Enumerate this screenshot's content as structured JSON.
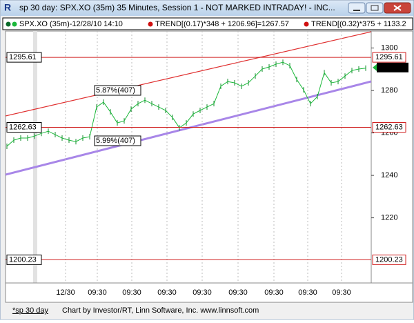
{
  "window": {
    "title": "sp 30 day: SPX.XO (35m) 35 Minutes, Session 1 - NOT MARKED INTRADAY! - INC...",
    "status_left": "*sp 30 day",
    "status_right": "Chart by Investor/RT, Linn Software, Inc. www.linnsoft.com"
  },
  "legend": [
    "SPX.XO (35m)-12/28/10 14:10",
    "TREND[(0.17)*348 + 1206.96]=1267.57",
    "TREND[(0.32)*375 + 1133.2"
  ],
  "chart": {
    "ylim": [
      1189.3,
      1308
    ],
    "yticks": [
      1220,
      1240,
      1260,
      1280,
      1300
    ],
    "xlabels": [
      "12/30",
      "09:30",
      "09:30",
      "09:30",
      "09:30",
      "09:30",
      "09:30",
      "09:30",
      "09:30"
    ],
    "levels": [
      1295.61,
      1262.63,
      1200.23
    ],
    "last": 1290.82,
    "annotations": [
      "5.87%(407)",
      "5.99%(407)"
    ],
    "closes": [
      1253.7,
      1256.6,
      1257.6,
      1257.6,
      1258.5,
      1259.8,
      1260.8,
      1259.2,
      1257.6,
      1256.6,
      1255.9,
      1257.6,
      1258.2,
      1272.2,
      1274.5,
      1269.9,
      1264.7,
      1265.7,
      1271.2,
      1273.8,
      1275.4,
      1273.8,
      1272.2,
      1270.6,
      1267.3,
      1262.4,
      1264.7,
      1268.9,
      1270.6,
      1272.2,
      1273.8,
      1282.0,
      1284.2,
      1283.6,
      1282.0,
      1283.6,
      1286.8,
      1290.1,
      1291.1,
      1292.4,
      1293.3,
      1291.7,
      1285.2,
      1280.3,
      1273.8,
      1277.1,
      1288.4,
      1283.6,
      1284.2,
      1286.8,
      1289.4,
      1290.1,
      1290.5
    ]
  }
}
